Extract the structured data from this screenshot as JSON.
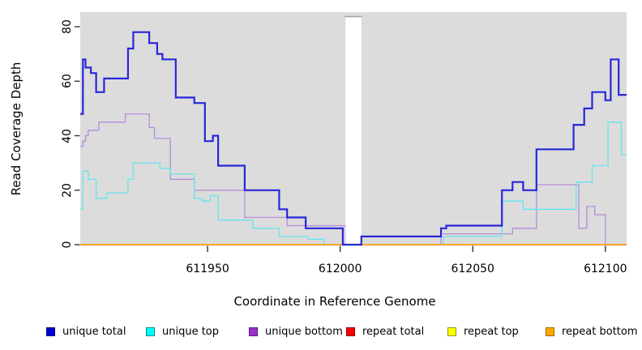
{
  "figure": {
    "background": "#ffffff",
    "plot_panel_color": "#dcdcdc",
    "tick_color": "#333333",
    "gap_cap_color": "#a3a3a3"
  },
  "chart_data": {
    "type": "line",
    "step_style": "post",
    "title": "",
    "xlabel": "Coordinate in Reference Genome",
    "ylabel": "Read Coverage Depth",
    "xlim": [
      611902,
      612108
    ],
    "ylim": [
      0,
      80
    ],
    "xticks": [
      611950,
      612000,
      612050,
      612100
    ],
    "yticks": [
      0,
      20,
      40,
      60,
      80
    ],
    "grid": false,
    "legend_position": "bottom",
    "gap_region": {
      "x_start": 612002,
      "x_end": 612008,
      "note": "white masked vertical band; only the 'unique total' line crosses it at depth 0"
    },
    "series": [
      {
        "name": "unique bottom",
        "color": "#b48cd8",
        "line_width": 1.3,
        "legend_fill": "#9932cc",
        "legend_border": "#551a8b",
        "points": [
          [
            611902,
            36
          ],
          [
            611903,
            38
          ],
          [
            611904,
            40
          ],
          [
            611905,
            42
          ],
          [
            611909,
            45
          ],
          [
            611919,
            48
          ],
          [
            611928,
            43
          ],
          [
            611930,
            39
          ],
          [
            611936,
            24
          ],
          [
            611945,
            20
          ],
          [
            611964,
            10
          ],
          [
            611980,
            7
          ],
          [
            612002,
            0
          ],
          [
            612038,
            4
          ],
          [
            612065,
            6
          ],
          [
            612074,
            22
          ],
          [
            612090,
            6
          ],
          [
            612093,
            14
          ],
          [
            612096,
            11
          ],
          [
            612100,
            0
          ],
          [
            612108,
            0
          ]
        ]
      },
      {
        "name": "unique top",
        "color": "#66e4ee",
        "line_width": 1.3,
        "legend_fill": "#00ffff",
        "legend_border": "#008b8b",
        "points": [
          [
            611902,
            13
          ],
          [
            611903,
            27
          ],
          [
            611905,
            24
          ],
          [
            611908,
            17
          ],
          [
            611912,
            19
          ],
          [
            611920,
            24
          ],
          [
            611922,
            30
          ],
          [
            611932,
            28
          ],
          [
            611936,
            26
          ],
          [
            611945,
            17
          ],
          [
            611948,
            16
          ],
          [
            611951,
            18
          ],
          [
            611954,
            9
          ],
          [
            611967,
            6
          ],
          [
            611977,
            3
          ],
          [
            611988,
            2
          ],
          [
            611994,
            0
          ],
          [
            612039,
            3
          ],
          [
            612061,
            16
          ],
          [
            612069,
            13
          ],
          [
            612089,
            23
          ],
          [
            612095,
            29
          ],
          [
            612101,
            45
          ],
          [
            612106,
            33
          ],
          [
            612108,
            33
          ]
        ]
      },
      {
        "name": "repeat total",
        "color": "#e60000",
        "line_width": 1.2,
        "legend_fill": "#ff0000",
        "legend_border": "#8b0000",
        "points": [
          [
            611902,
            0
          ],
          [
            612108,
            0
          ]
        ]
      },
      {
        "name": "repeat top",
        "color": "#ffff00",
        "line_width": 1.2,
        "legend_fill": "#ffff00",
        "legend_border": "#999900",
        "points": [
          [
            611902,
            0
          ],
          [
            612108,
            0
          ]
        ]
      },
      {
        "name": "repeat bottom",
        "color": "#ffa013",
        "line_width": 1.6,
        "legend_fill": "#ffa500",
        "legend_border": "#a66a00",
        "points": [
          [
            611902,
            0
          ],
          [
            612108,
            0
          ]
        ]
      },
      {
        "name": "unique total",
        "color": "#2727d8",
        "line_width": 2.2,
        "legend_fill": "#0000cd",
        "legend_border": "#000080",
        "points": [
          [
            611902,
            48
          ],
          [
            611903,
            68
          ],
          [
            611904,
            65
          ],
          [
            611906,
            63
          ],
          [
            611908,
            56
          ],
          [
            611911,
            61
          ],
          [
            611920,
            72
          ],
          [
            611922,
            78
          ],
          [
            611928,
            74
          ],
          [
            611931,
            70
          ],
          [
            611933,
            68
          ],
          [
            611938,
            54
          ],
          [
            611945,
            52
          ],
          [
            611949,
            38
          ],
          [
            611952,
            40
          ],
          [
            611954,
            29
          ],
          [
            611964,
            20
          ],
          [
            611977,
            13
          ],
          [
            611980,
            10
          ],
          [
            611987,
            6
          ],
          [
            612001,
            0
          ],
          [
            612008,
            3
          ],
          [
            612038,
            6
          ],
          [
            612040,
            7
          ],
          [
            612061,
            20
          ],
          [
            612065,
            23
          ],
          [
            612069,
            20
          ],
          [
            612074,
            35
          ],
          [
            612088,
            44
          ],
          [
            612092,
            50
          ],
          [
            612095,
            56
          ],
          [
            612100,
            53
          ],
          [
            612102,
            68
          ],
          [
            612105,
            55
          ],
          [
            612108,
            55
          ]
        ]
      }
    ],
    "legend_order": [
      "unique total",
      "unique top",
      "unique bottom",
      "repeat total",
      "repeat top",
      "repeat bottom"
    ]
  }
}
